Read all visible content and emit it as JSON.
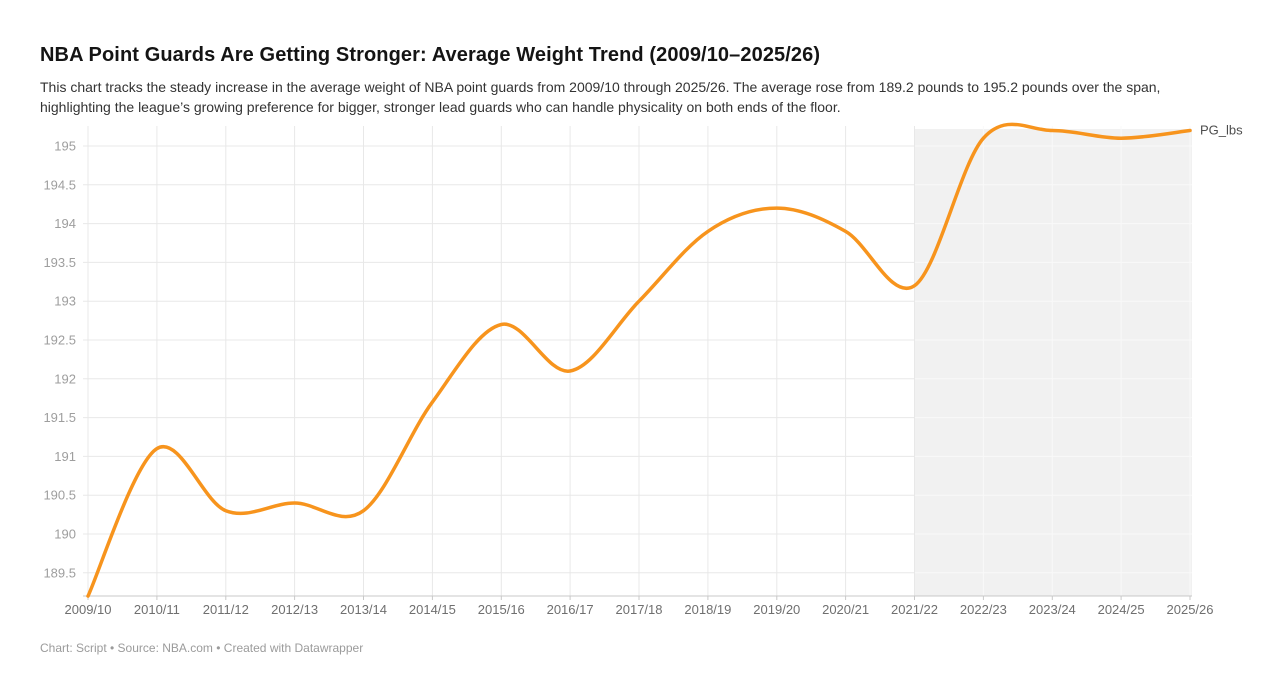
{
  "header": {
    "title": "NBA Point Guards Are Getting Stronger: Average Weight Trend (2009/10–2025/26)",
    "description_lines": [
      "This chart tracks the steady increase in the average weight of NBA point guards from 2009/10 through 2025/26. The average rose from 189.2 pounds to 195.2 pounds over the span,",
      "highlighting the league’s growing preference for bigger, stronger lead guards who can handle physicality on both ends of the floor."
    ]
  },
  "footer": {
    "text": "Chart: Script • Source: NBA.com • Created with Datawrapper"
  },
  "chart_data": {
    "type": "line",
    "title": "NBA Point Guards Are Getting Stronger: Average Weight Trend (2009/10–2025/26)",
    "xlabel": "",
    "ylabel": "",
    "categories": [
      "2009/10",
      "2010/11",
      "2011/12",
      "2012/13",
      "2013/14",
      "2014/15",
      "2015/16",
      "2016/17",
      "2017/18",
      "2018/19",
      "2019/20",
      "2020/21",
      "2021/22",
      "2022/23",
      "2023/24",
      "2024/25",
      "2025/26"
    ],
    "series": [
      {
        "name": "PG_lbs",
        "values": [
          189.2,
          191.1,
          190.3,
          190.4,
          190.3,
          191.7,
          192.7,
          192.1,
          193.0,
          193.9,
          194.2,
          193.9,
          193.2,
          195.1,
          195.2,
          195.1,
          195.2
        ]
      }
    ],
    "yticks": [
      189.5,
      190,
      190.5,
      191,
      191.5,
      192,
      192.5,
      193,
      193.5,
      194,
      194.5,
      195
    ],
    "ylim": [
      189.0,
      195.4
    ],
    "grid": true,
    "curve": "smooth",
    "legend_position": "line-end-label",
    "line_label": "PG_lbs",
    "highlight_range": {
      "from": "2021/22",
      "to": "2025/26"
    }
  },
  "colors": {
    "line": "#F7941D",
    "grid": "#E8E8E8",
    "grid_on_band": "#F9F9F9",
    "highlight_band": "#F1F1F1",
    "baseline": "#C8C8C8",
    "axis_y": "#9E9E9E",
    "axis_x": "#6F6F6F",
    "line_label_color": "#4D4D4D",
    "title": "#141414",
    "description": "#333333",
    "footer": "#9B9B9B"
  }
}
